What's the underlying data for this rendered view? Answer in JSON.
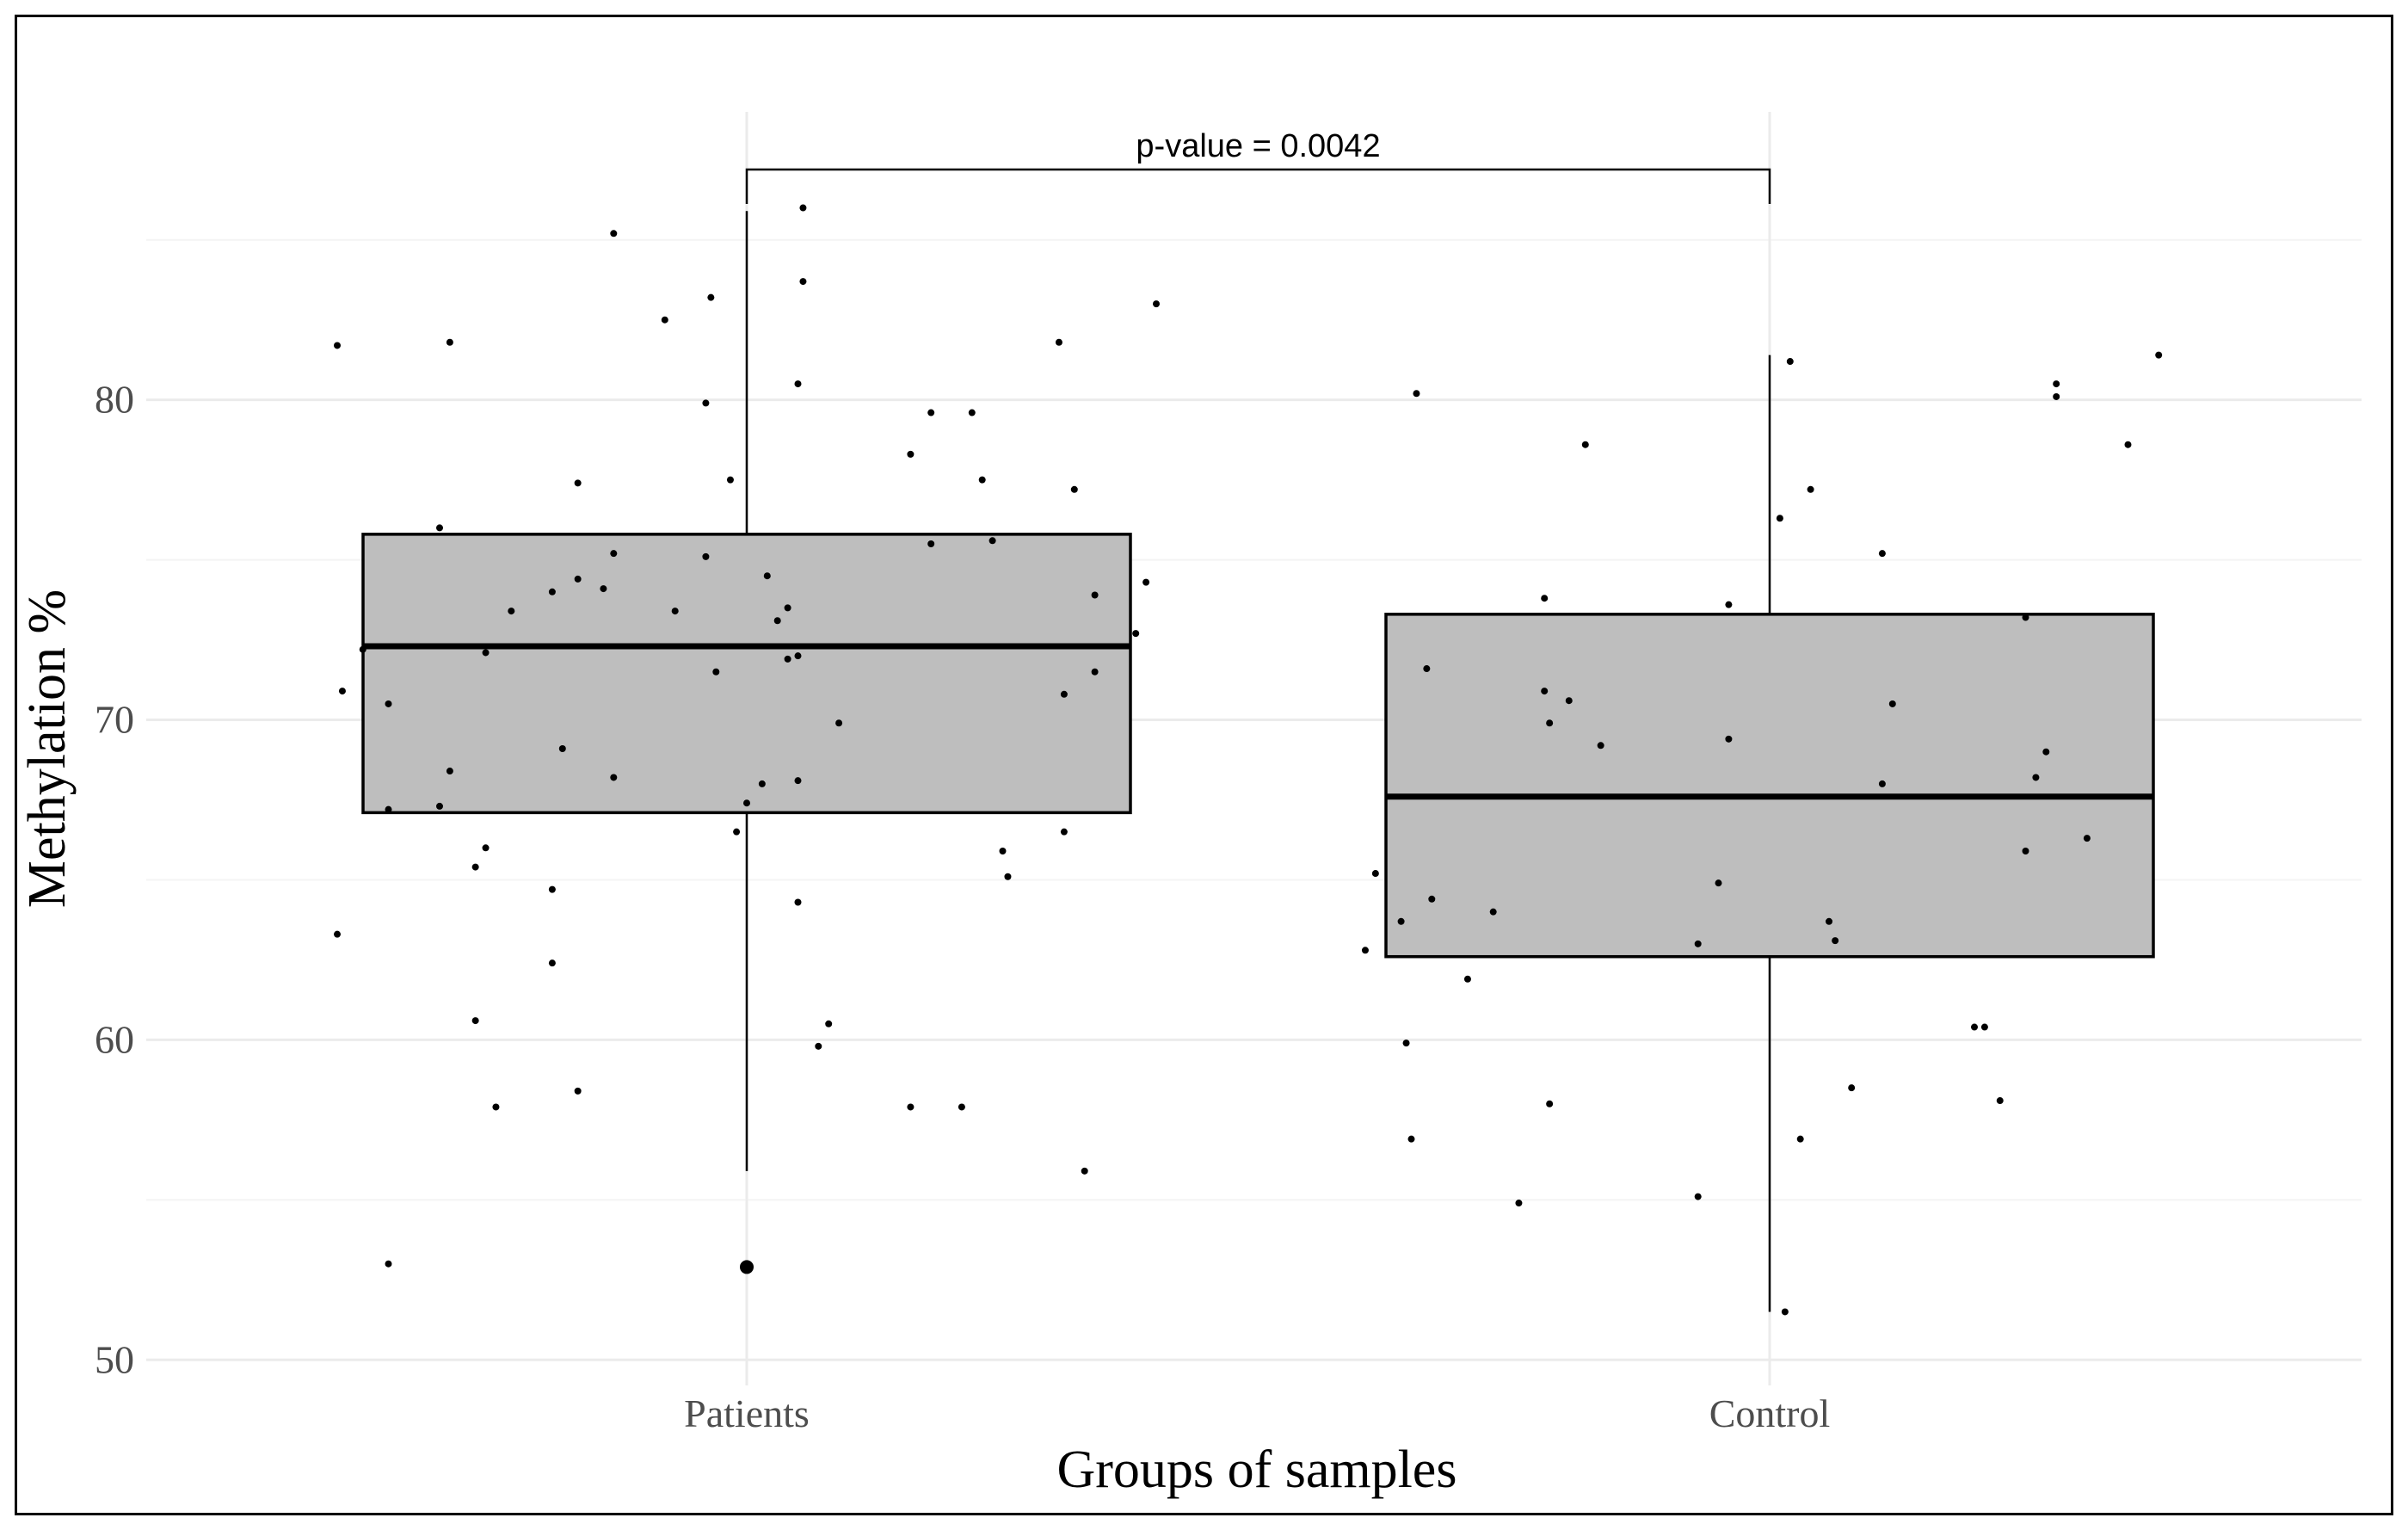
{
  "chart_data": {
    "type": "box",
    "title": "",
    "xlabel": "Groups of samples",
    "ylabel": "Methylation %",
    "ylim": [
      49.2,
      89.0
    ],
    "yticks": [
      50,
      60,
      70,
      80
    ],
    "categories": [
      "Patients",
      "Control"
    ],
    "grid": true,
    "legend": "none",
    "annotation": "p-value = 0.0042",
    "colors": {
      "box_fill": "#bebebe",
      "grid": "#ebebeb",
      "point": "#000000"
    },
    "boxes": [
      {
        "name": "Patients",
        "q1": 67.1,
        "median": 72.3,
        "q3": 75.8,
        "whisker_low": 55.9,
        "whisker_high": 85.9,
        "outliers": [
          52.9
        ],
        "points": [
          [
            -0.4,
            81.7
          ],
          [
            -0.35,
            53.0
          ],
          [
            -0.29,
            81.8
          ],
          [
            -0.13,
            85.2
          ],
          [
            -0.08,
            82.5
          ],
          [
            -0.035,
            83.2
          ],
          [
            0.055,
            83.7
          ],
          [
            0.055,
            86.0
          ],
          [
            0.05,
            80.5
          ],
          [
            0.4,
            83.0
          ],
          [
            0.305,
            81.8
          ],
          [
            -0.04,
            79.9
          ],
          [
            -0.016,
            77.5
          ],
          [
            0.16,
            78.3
          ],
          [
            0.18,
            79.6
          ],
          [
            0.22,
            79.6
          ],
          [
            0.23,
            77.5
          ],
          [
            0.32,
            77.2
          ],
          [
            -0.165,
            77.4
          ],
          [
            -0.3,
            76.0
          ],
          [
            0.18,
            75.5
          ],
          [
            0.24,
            75.6
          ],
          [
            -0.13,
            75.2
          ],
          [
            -0.04,
            75.1
          ],
          [
            0.02,
            74.5
          ],
          [
            0.39,
            74.3
          ],
          [
            -0.165,
            74.4
          ],
          [
            -0.14,
            74.1
          ],
          [
            -0.19,
            74.0
          ],
          [
            0.34,
            73.9
          ],
          [
            -0.23,
            73.4
          ],
          [
            -0.07,
            73.4
          ],
          [
            0.04,
            73.5
          ],
          [
            0.03,
            73.1
          ],
          [
            0.38,
            72.7
          ],
          [
            -0.375,
            72.2
          ],
          [
            -0.255,
            72.1
          ],
          [
            0.04,
            71.9
          ],
          [
            0.05,
            72.0
          ],
          [
            -0.03,
            71.5
          ],
          [
            0.34,
            71.5
          ],
          [
            -0.395,
            70.9
          ],
          [
            0.31,
            70.8
          ],
          [
            -0.35,
            70.5
          ],
          [
            0.09,
            69.9
          ],
          [
            -0.18,
            69.1
          ],
          [
            -0.29,
            68.4
          ],
          [
            -0.13,
            68.2
          ],
          [
            0.015,
            68.0
          ],
          [
            0.05,
            68.1
          ],
          [
            -0.3,
            67.3
          ],
          [
            -0.35,
            67.2
          ],
          [
            0.0,
            67.4
          ],
          [
            -0.01,
            66.5
          ],
          [
            0.31,
            66.5
          ],
          [
            -0.255,
            66.0
          ],
          [
            0.25,
            65.9
          ],
          [
            -0.265,
            65.4
          ],
          [
            0.255,
            65.1
          ],
          [
            -0.19,
            64.7
          ],
          [
            0.05,
            64.3
          ],
          [
            -0.4,
            63.3
          ],
          [
            -0.19,
            62.4
          ],
          [
            -0.265,
            60.6
          ],
          [
            0.08,
            60.5
          ],
          [
            0.07,
            59.8
          ],
          [
            -0.245,
            57.9
          ],
          [
            -0.165,
            58.4
          ],
          [
            0.16,
            57.9
          ],
          [
            0.21,
            57.9
          ],
          [
            0.33,
            55.9
          ]
        ]
      },
      {
        "name": "Control",
        "q1": 62.6,
        "median": 67.6,
        "q3": 73.3,
        "whisker_low": 51.5,
        "whisker_high": 81.4,
        "outliers": [],
        "points": [
          [
            -0.345,
            80.2
          ],
          [
            -0.18,
            78.6
          ],
          [
            0.02,
            81.2
          ],
          [
            0.28,
            80.5
          ],
          [
            0.28,
            80.1
          ],
          [
            0.38,
            81.4
          ],
          [
            0.35,
            78.6
          ],
          [
            0.04,
            77.2
          ],
          [
            0.01,
            76.3
          ],
          [
            0.11,
            75.2
          ],
          [
            -0.22,
            73.8
          ],
          [
            -0.04,
            73.6
          ],
          [
            0.25,
            73.2
          ],
          [
            -0.335,
            71.6
          ],
          [
            -0.22,
            70.9
          ],
          [
            -0.196,
            70.6
          ],
          [
            0.12,
            70.5
          ],
          [
            -0.215,
            69.9
          ],
          [
            -0.165,
            69.2
          ],
          [
            -0.04,
            69.4
          ],
          [
            0.27,
            69.0
          ],
          [
            0.26,
            68.2
          ],
          [
            0.11,
            68.0
          ],
          [
            0.31,
            66.3
          ],
          [
            0.25,
            65.9
          ],
          [
            -0.385,
            65.2
          ],
          [
            -0.05,
            64.9
          ],
          [
            -0.33,
            64.4
          ],
          [
            -0.36,
            63.7
          ],
          [
            -0.27,
            64.0
          ],
          [
            0.058,
            63.7
          ],
          [
            0.064,
            63.1
          ],
          [
            -0.07,
            63.0
          ],
          [
            -0.395,
            62.8
          ],
          [
            -0.295,
            61.9
          ],
          [
            0.2,
            60.4
          ],
          [
            0.21,
            60.4
          ],
          [
            -0.355,
            59.9
          ],
          [
            0.08,
            58.5
          ],
          [
            -0.215,
            58.0
          ],
          [
            0.225,
            58.1
          ],
          [
            -0.35,
            56.9
          ],
          [
            0.03,
            56.9
          ],
          [
            -0.245,
            54.9
          ],
          [
            -0.07,
            55.1
          ],
          [
            0.015,
            51.5
          ]
        ]
      }
    ]
  }
}
